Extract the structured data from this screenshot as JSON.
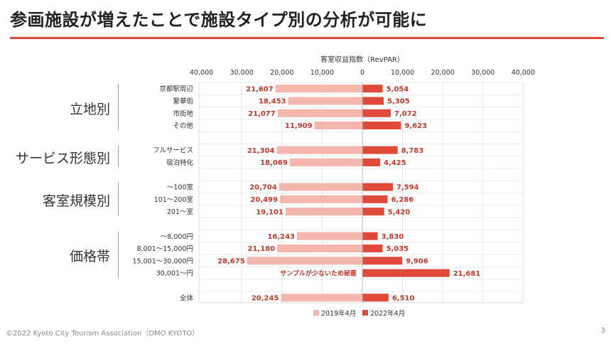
{
  "page": {
    "title": "参画施設が増えたことで施設タイプ別の分析が可能に",
    "footer": "©2022 Kyoto City Tourism Association（DMO KYOTO）",
    "page_number": "3"
  },
  "colors": {
    "accent": "#e04a3a",
    "series_2019": "#f4b6ad",
    "series_2022": "#e04a3a",
    "label_text": "#c0392b"
  },
  "groups": [
    {
      "label": "立地別",
      "rows": [
        0,
        3
      ]
    },
    {
      "label": "サービス形態別",
      "rows": [
        5,
        6
      ]
    },
    {
      "label": "客室規模別",
      "rows": [
        8,
        10
      ]
    },
    {
      "label": "価格帯",
      "rows": [
        12,
        15
      ]
    }
  ],
  "chart_data": {
    "type": "bar",
    "orientation": "horizontal-butterfly",
    "title": "客室収益指数（RevPAR）",
    "x_ticks_left": [
      "40,000",
      "30,000",
      "20,000",
      "10,000",
      "0"
    ],
    "x_ticks_right": [
      "10,000",
      "20,000",
      "30,000",
      "40,000"
    ],
    "xlim": [
      -40000,
      40000
    ],
    "grid": true,
    "legend_position": "bottom",
    "categories": [
      "京都駅周辺",
      "繁華街",
      "市街地",
      "その他",
      "",
      "フルサービス",
      "宿泊特化",
      "",
      "～100室",
      "101～200室",
      "201～室",
      "",
      "～8,000円",
      "8,001～15,000円",
      "15,001～30,000円",
      "30,001～円",
      "",
      "全体"
    ],
    "series": [
      {
        "name": "2019年4月",
        "side": "left",
        "values": [
          21607,
          18453,
          21077,
          11909,
          null,
          21304,
          18069,
          null,
          20704,
          20499,
          19101,
          null,
          16243,
          21180,
          28675,
          null,
          null,
          20245
        ],
        "labels": [
          "21,607",
          "18,453",
          "21,077",
          "11,909",
          "",
          "21,304",
          "18,069",
          "",
          "20,704",
          "20,499",
          "19,101",
          "",
          "16,243",
          "21,180",
          "28,675",
          "",
          "",
          "20,245"
        ]
      },
      {
        "name": "2022年4月",
        "side": "right",
        "values": [
          5054,
          5305,
          7072,
          9623,
          null,
          8783,
          4425,
          null,
          7594,
          6286,
          5420,
          null,
          3830,
          5035,
          9906,
          21681,
          null,
          6510
        ],
        "labels": [
          "5,054",
          "5,305",
          "7,072",
          "9,623",
          "",
          "8,783",
          "4,425",
          "",
          "7,594",
          "6,286",
          "5,420",
          "",
          "3,830",
          "5,035",
          "9,906",
          "21,681",
          "",
          "6,510"
        ]
      }
    ],
    "annotations": [
      {
        "row": 15,
        "text": "サンプルが少ないため秘匿"
      }
    ]
  }
}
